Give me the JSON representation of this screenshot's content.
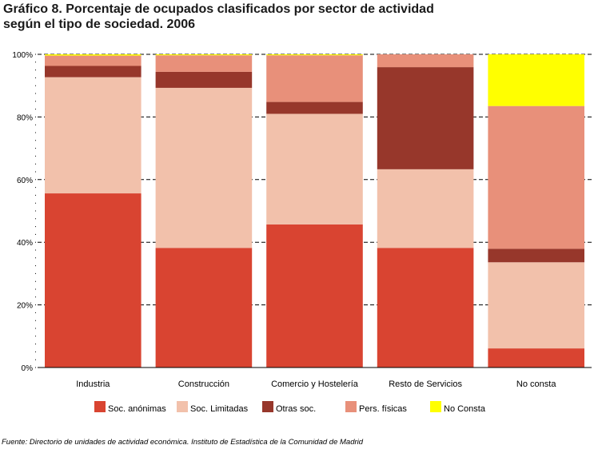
{
  "title_lines": [
    "Gráfico 8. Porcentaje de ocupados clasificados por sector de actividad",
    "según el tipo de sociedad. 2006"
  ],
  "source": "Fuente: Directorio de unidades de actividad económica. Instituto de Estadística de la Comunidad de Madrid",
  "colors": {
    "Soc. anónimas": "#D94431",
    "Soc. Limitadas": "#F2C1AB",
    "Otras soc.": "#97372B",
    "Pers. físicas": "#E8907A",
    "No Consta": "#FFFF00"
  },
  "chart_data": {
    "type": "bar",
    "stacked": true,
    "categories": [
      "Industria",
      "Construcción",
      "Comercio y Hostelería",
      "Resto de Servicios",
      "No consta"
    ],
    "series": [
      {
        "name": "Soc. anónimas",
        "values": [
          55.6,
          38.2,
          45.7,
          38.2,
          6.1
        ]
      },
      {
        "name": "Soc. Limitadas",
        "values": [
          37.1,
          51.1,
          35.3,
          25.1,
          27.5
        ]
      },
      {
        "name": "Otras soc.",
        "values": [
          3.6,
          5.1,
          3.8,
          32.6,
          4.3
        ]
      },
      {
        "name": "Pers. físicas",
        "values": [
          3.3,
          5.3,
          14.9,
          4.1,
          45.6
        ]
      },
      {
        "name": "No Consta",
        "values": [
          0.4,
          0.3,
          0.3,
          0.0,
          16.5
        ]
      }
    ],
    "yticks": [
      "0%",
      "20%",
      "40%",
      "60%",
      "80%",
      "100%"
    ],
    "ylim": [
      0,
      100
    ],
    "grid": true,
    "legend_position": "bottom"
  }
}
